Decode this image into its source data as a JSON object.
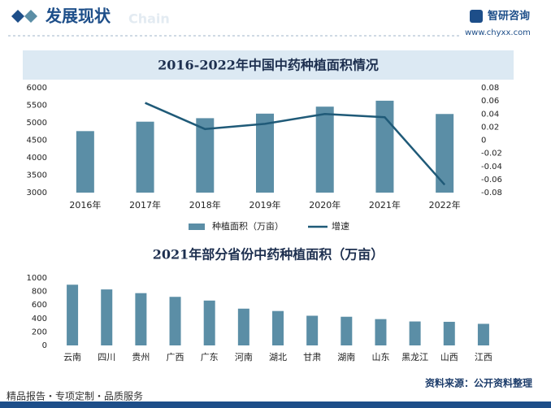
{
  "header": {
    "title": "发展现状",
    "watermark": "Chain",
    "brand": "智研咨询",
    "url": "www.chyxx.com"
  },
  "chart_data": [
    {
      "type": "bar",
      "title": "2016-2022年中国中药种植面积情况",
      "categories": [
        "2016年",
        "2017年",
        "2018年",
        "2019年",
        "2020年",
        "2021年",
        "2022年"
      ],
      "series": [
        {
          "name": "种植面积（万亩）",
          "color": "#5b8ea6",
          "values": [
            4760,
            5030,
            5130,
            5260,
            5460,
            5630,
            5250
          ]
        },
        {
          "name": "增速",
          "color": "#1f5a78",
          "type": "line",
          "axis": "y2",
          "values": [
            null,
            0.057,
            0.017,
            0.025,
            0.04,
            0.035,
            -0.068
          ]
        }
      ],
      "ylim": [
        3000,
        6000
      ],
      "yticks": [
        3000,
        3500,
        4000,
        4500,
        5000,
        5500,
        6000
      ],
      "y2lim": [
        -0.08,
        0.08
      ],
      "y2ticks": [
        -0.08,
        -0.06,
        -0.04,
        -0.02,
        0,
        0.02,
        0.04,
        0.06,
        0.08
      ],
      "legend": "bottom"
    },
    {
      "type": "bar",
      "title": "2021年部分省份中药种植面积（万亩）",
      "categories": [
        "云南",
        "四川",
        "贵州",
        "广西",
        "广东",
        "河南",
        "湖北",
        "甘肃",
        "湖南",
        "山东",
        "黑龙江",
        "山西",
        "江西"
      ],
      "values": [
        900,
        830,
        775,
        720,
        665,
        545,
        510,
        440,
        425,
        390,
        355,
        350,
        320
      ],
      "color": "#5b8ea6",
      "ylim": [
        0,
        1000
      ],
      "yticks": [
        0,
        200,
        400,
        600,
        800,
        1000
      ]
    }
  ],
  "footer": {
    "slogan": "精品报告・专项定制・品质服务",
    "source": "资料来源：公开资料整理"
  }
}
